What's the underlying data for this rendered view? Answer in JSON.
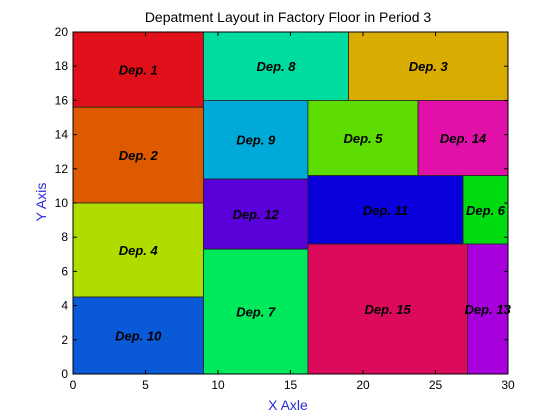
{
  "chart_data": {
    "type": "block-layout",
    "title": "Depatment Layout in Factory Floor in Period 3",
    "xlabel": "X Axle",
    "ylabel": "Y Axis",
    "xlim": [
      0,
      30
    ],
    "ylim": [
      0,
      20
    ],
    "xticks": [
      "0",
      "5",
      "10",
      "15",
      "20",
      "25",
      "30"
    ],
    "yticks": [
      "0",
      "2",
      "4",
      "6",
      "8",
      "10",
      "12",
      "14",
      "16",
      "18",
      "20"
    ],
    "axis_label_color": "#2a2ad8",
    "departments": [
      {
        "label": "Dep. 1",
        "x0": 0,
        "x1": 9,
        "y0": 15.6,
        "y1": 20,
        "color": "#e0101a"
      },
      {
        "label": "Dep. 2",
        "x0": 0,
        "x1": 9,
        "y0": 10,
        "y1": 15.6,
        "color": "#dd5a00"
      },
      {
        "label": "Dep. 4",
        "x0": 0,
        "x1": 9,
        "y0": 4.5,
        "y1": 10,
        "color": "#b0dd00"
      },
      {
        "label": "Dep. 10",
        "x0": 0,
        "x1": 9,
        "y0": 0,
        "y1": 4.5,
        "color": "#0a5ad8"
      },
      {
        "label": "Dep. 8",
        "x0": 9,
        "x1": 19,
        "y0": 16,
        "y1": 20,
        "color": "#00dca0"
      },
      {
        "label": "Dep. 3",
        "x0": 19,
        "x1": 30,
        "y0": 16,
        "y1": 20,
        "color": "#d8ac00"
      },
      {
        "label": "Dep. 9",
        "x0": 9,
        "x1": 16.2,
        "y0": 11.4,
        "y1": 16,
        "color": "#00aad8"
      },
      {
        "label": "Dep. 5",
        "x0": 16.2,
        "x1": 23.8,
        "y0": 11.6,
        "y1": 16,
        "color": "#5cdc00"
      },
      {
        "label": "Dep. 14",
        "x0": 23.8,
        "x1": 30,
        "y0": 11.6,
        "y1": 16,
        "color": "#e010a8"
      },
      {
        "label": "Dep. 12",
        "x0": 9,
        "x1": 16.2,
        "y0": 7.3,
        "y1": 11.4,
        "color": "#5a00d8"
      },
      {
        "label": "Dep. 11",
        "x0": 16.2,
        "x1": 26.9,
        "y0": 7.6,
        "y1": 11.6,
        "color": "#0a00dc"
      },
      {
        "label": "Dep. 6",
        "x0": 26.9,
        "x1": 30,
        "y0": 7.6,
        "y1": 11.6,
        "color": "#00dc10"
      },
      {
        "label": "Dep. 7",
        "x0": 9,
        "x1": 16.2,
        "y0": 0,
        "y1": 7.3,
        "color": "#00e85c"
      },
      {
        "label": "Dep. 15",
        "x0": 16.2,
        "x1": 27.2,
        "y0": 0,
        "y1": 7.6,
        "color": "#dc0a5a"
      },
      {
        "label": "Dep. 13",
        "x0": 27.2,
        "x1": 30,
        "y0": 0,
        "y1": 7.6,
        "color": "#a800dc"
      }
    ]
  }
}
